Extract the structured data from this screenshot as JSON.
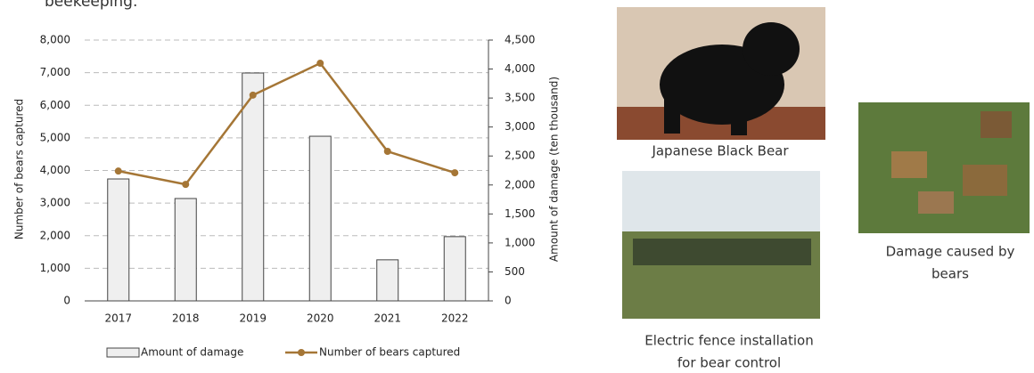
{
  "intro_text": "beekeeping.",
  "chart_data": {
    "type": "combo",
    "y_label": "Number of bears captured",
    "y2_label": "Amount of damage (ten thousand)",
    "categories": [
      "2017",
      "2018",
      "2019",
      "2020",
      "2021",
      "2022"
    ],
    "series": [
      {
        "name": "Amount of damage",
        "type": "bar",
        "color": "#efefef",
        "values": [
          3740,
          3140,
          6990,
          5050,
          1260,
          1970
        ]
      },
      {
        "name": "Number of bears captured",
        "type": "line",
        "axis": "y2",
        "color": "#a57636",
        "values": [
          2240,
          2010,
          3550,
          4100,
          2580,
          2210
        ]
      }
    ],
    "ylim": [
      0,
      8000
    ],
    "yticks": [
      0,
      {
        "value": 1000,
        "label": "1,000"
      },
      {
        "value": 2000,
        "label": "2,000"
      },
      {
        "value": 3000,
        "label": "3,000"
      },
      {
        "value": 4000,
        "label": "4,000"
      },
      {
        "value": 5000,
        "label": "5,000"
      },
      {
        "value": 6000,
        "label": "6,000"
      },
      {
        "value": 7000,
        "label": "7,000"
      },
      {
        "value": 8000,
        "label": "8,000"
      }
    ],
    "y2lim": [
      0,
      4500
    ],
    "y2ticks": [
      0,
      500,
      {
        "value": 1000,
        "label": "1,000"
      },
      {
        "value": 1500,
        "label": "1,500"
      },
      {
        "value": 2000,
        "label": "2,000"
      },
      {
        "value": 2500,
        "label": "2,500"
      },
      {
        "value": 3000,
        "label": "3,000"
      },
      {
        "value": 3500,
        "label": "3,500"
      },
      {
        "value": 4000,
        "label": "4,000"
      },
      {
        "value": 4500,
        "label": "4,500"
      }
    ],
    "grid": true,
    "legend": "bottom"
  },
  "photos": [
    {
      "caption": [
        "Japanese Black Bear"
      ]
    },
    {
      "caption": [
        "Electric fence installation",
        "for bear control"
      ]
    },
    {
      "caption": [
        "Damage caused by",
        "bears"
      ]
    }
  ]
}
